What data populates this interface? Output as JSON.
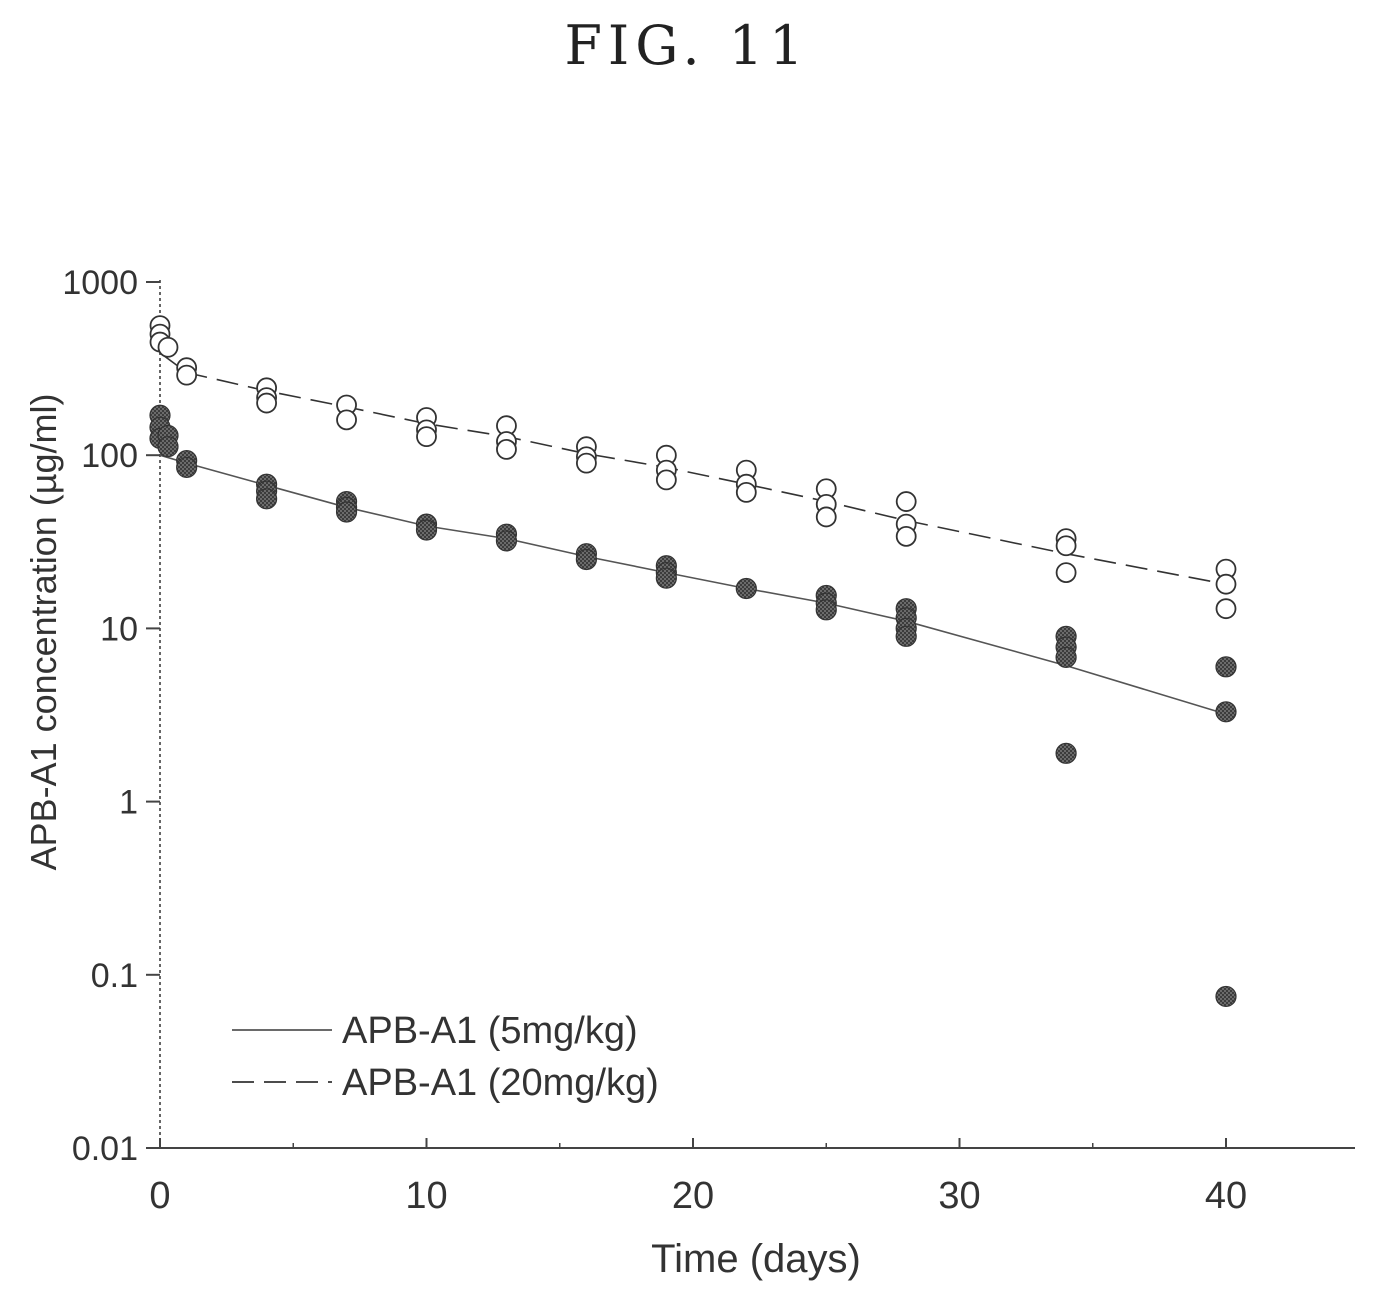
{
  "figure_label": "FIG. 11",
  "chart_data": {
    "type": "scatter",
    "xlabel": "Time (days)",
    "ylabel": "APB-A1 concentration (µg/ml)",
    "xlim": [
      0,
      45
    ],
    "ylim": [
      0.01,
      1000
    ],
    "y_scale": "log",
    "x_ticks": [
      0,
      10,
      20,
      30,
      40
    ],
    "x_tick_labels": [
      "0",
      "10",
      "20",
      "30",
      "40"
    ],
    "y_ticks": [
      0.01,
      0.1,
      1,
      10,
      100,
      1000
    ],
    "y_tick_labels": [
      "0.01",
      "0.1",
      "1",
      "10",
      "100",
      "1000"
    ],
    "legend_position": "bottom-left",
    "series": [
      {
        "name": "APB-A1 (5mg/kg)",
        "line_style": "solid",
        "marker": "filled-circle",
        "color": "#555555",
        "fit": [
          [
            0,
            100
          ],
          [
            1,
            90
          ],
          [
            4,
            67
          ],
          [
            7,
            50
          ],
          [
            10,
            39
          ],
          [
            13,
            33
          ],
          [
            16,
            26
          ],
          [
            19,
            21
          ],
          [
            22,
            17
          ],
          [
            25,
            14
          ],
          [
            28,
            11
          ],
          [
            34,
            6.1
          ],
          [
            40,
            3.2
          ]
        ],
        "points": [
          [
            0,
            170
          ],
          [
            0,
            145
          ],
          [
            0,
            125
          ],
          [
            0.3,
            130
          ],
          [
            0.3,
            112
          ],
          [
            1,
            93
          ],
          [
            1,
            85
          ],
          [
            4,
            68
          ],
          [
            4,
            62
          ],
          [
            4,
            56
          ],
          [
            7,
            54
          ],
          [
            7,
            50
          ],
          [
            7,
            47
          ],
          [
            10,
            40
          ],
          [
            10,
            37
          ],
          [
            13,
            35
          ],
          [
            13,
            32
          ],
          [
            16,
            27
          ],
          [
            16,
            25
          ],
          [
            19,
            23
          ],
          [
            19,
            21
          ],
          [
            19,
            19.5
          ],
          [
            22,
            17
          ],
          [
            25,
            15.5
          ],
          [
            25,
            14
          ],
          [
            25,
            12.8
          ],
          [
            28,
            13
          ],
          [
            28,
            11.5
          ],
          [
            28,
            10
          ],
          [
            28,
            9
          ],
          [
            34,
            9
          ],
          [
            34,
            7.8
          ],
          [
            34,
            6.8
          ],
          [
            34,
            1.9
          ],
          [
            40,
            6
          ],
          [
            40,
            3.3
          ],
          [
            40,
            0.075
          ]
        ]
      },
      {
        "name": "APB-A1 (20mg/kg)",
        "line_style": "dashed",
        "marker": "open-circle",
        "color": "#333333",
        "fit": [
          [
            0,
            390
          ],
          [
            1,
            300
          ],
          [
            4,
            235
          ],
          [
            7,
            190
          ],
          [
            10,
            152
          ],
          [
            13,
            128
          ],
          [
            16,
            102
          ],
          [
            19,
            85
          ],
          [
            22,
            68
          ],
          [
            25,
            54
          ],
          [
            28,
            42
          ],
          [
            34,
            27
          ],
          [
            40,
            18
          ]
        ],
        "points": [
          [
            0,
            560
          ],
          [
            0,
            500
          ],
          [
            0,
            450
          ],
          [
            0.3,
            420
          ],
          [
            1,
            320
          ],
          [
            1,
            290
          ],
          [
            4,
            245
          ],
          [
            4,
            215
          ],
          [
            4,
            200
          ],
          [
            7,
            195
          ],
          [
            7,
            160
          ],
          [
            10,
            165
          ],
          [
            10,
            140
          ],
          [
            10,
            128
          ],
          [
            13,
            148
          ],
          [
            13,
            120
          ],
          [
            13,
            108
          ],
          [
            16,
            112
          ],
          [
            16,
            98
          ],
          [
            16,
            90
          ],
          [
            19,
            100
          ],
          [
            19,
            82
          ],
          [
            19,
            72
          ],
          [
            22,
            82
          ],
          [
            22,
            68
          ],
          [
            22,
            61
          ],
          [
            25,
            64
          ],
          [
            25,
            52
          ],
          [
            25,
            44
          ],
          [
            28,
            54
          ],
          [
            28,
            40
          ],
          [
            28,
            34
          ],
          [
            34,
            33
          ],
          [
            34,
            30
          ],
          [
            34,
            21
          ],
          [
            40,
            22
          ],
          [
            40,
            18
          ],
          [
            40,
            13
          ]
        ]
      }
    ]
  }
}
